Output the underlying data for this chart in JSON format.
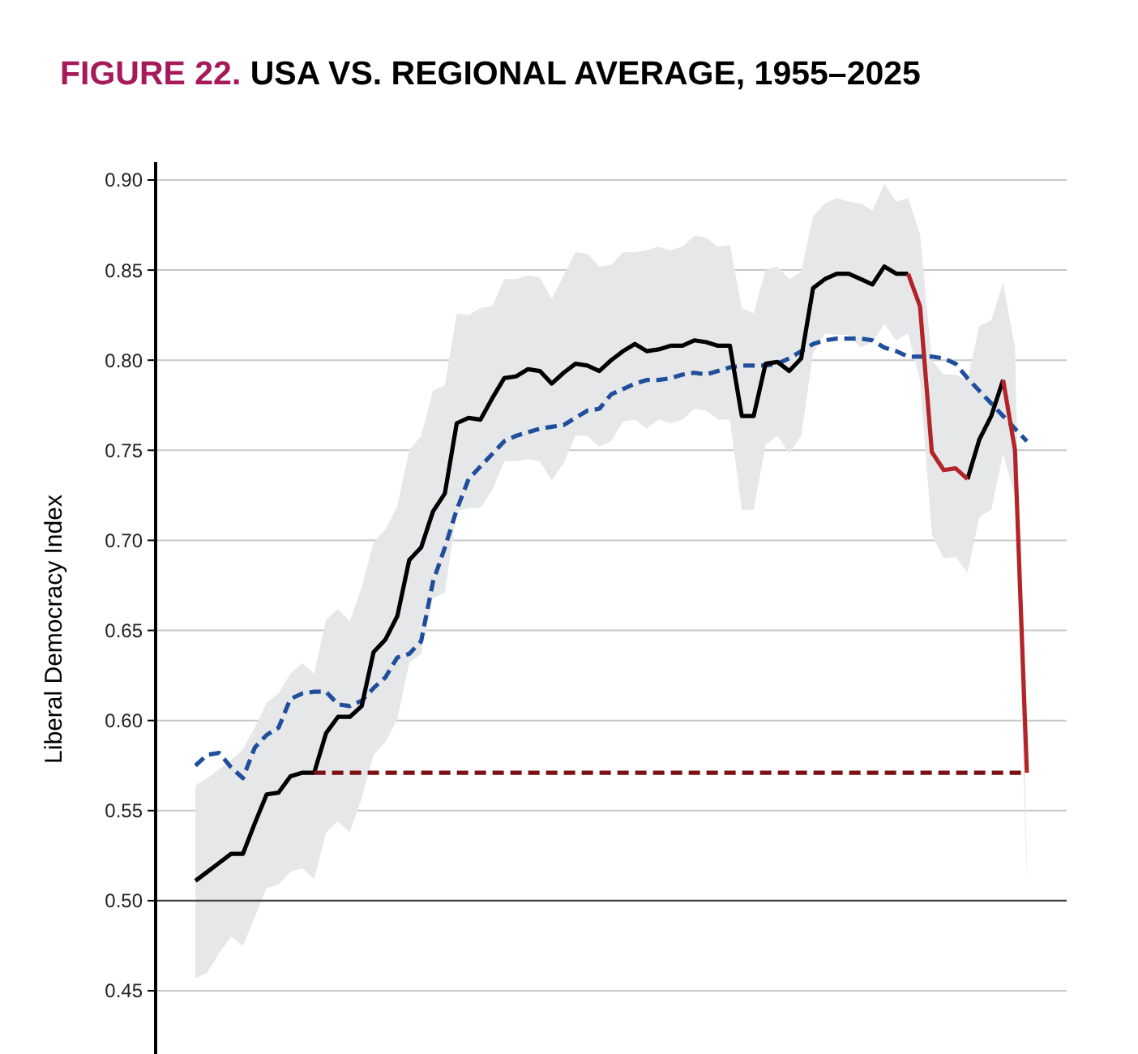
{
  "chart_data": {
    "type": "line",
    "title": "USA VS. REGIONAL AVERAGE, 1955–2025",
    "annotations": [
      "FIGURE 22."
    ],
    "ylabel": "Liberal Democracy Index",
    "categories": [
      null,
      null,
      null,
      null,
      null,
      null,
      null,
      null,
      null,
      null,
      null,
      null,
      null,
      null,
      null,
      null,
      null,
      null,
      null,
      null,
      null,
      null,
      null,
      null,
      null,
      null,
      null,
      null,
      null,
      null,
      null,
      null,
      null,
      null,
      null,
      null,
      null,
      null,
      null,
      null,
      null,
      null,
      null,
      null,
      null,
      null,
      null,
      null,
      null,
      null,
      null,
      null,
      null,
      null,
      null,
      null,
      null,
      null,
      null,
      null,
      null,
      null,
      null,
      null,
      null,
      null,
      null,
      null,
      null,
      null,
      null
    ],
    "ylim": [
      0.45,
      0.9
    ],
    "yticks": [
      {
        "value": 0.45,
        "label": "0.45"
      },
      {
        "value": 0.5,
        "label": "0.50"
      },
      {
        "value": 0.55,
        "label": "0.55"
      },
      {
        "value": 0.6,
        "label": "0.60"
      },
      {
        "value": 0.65,
        "label": "0.65"
      },
      {
        "value": 0.7,
        "label": "0.70"
      },
      {
        "value": 0.75,
        "label": "0.75"
      },
      {
        "value": 0.8,
        "label": "0.80"
      },
      {
        "value": 0.85,
        "label": "0.85"
      },
      {
        "value": 0.9,
        "label": "0.90"
      }
    ],
    "tick_labels": "y",
    "grid": "y",
    "ref_lines": [
      {
        "axis": "y",
        "value": 0.5,
        "color": "#444444"
      }
    ],
    "series": [
      {
        "color": "#1f4e9c",
        "line_style": "dashed",
        "values": [
          0.575,
          0.581,
          0.582,
          0.574,
          0.568,
          0.585,
          0.592,
          0.596,
          0.612,
          0.615,
          0.616,
          0.616,
          0.609,
          0.608,
          0.611,
          0.618,
          0.624,
          0.635,
          0.637,
          0.644,
          0.677,
          0.696,
          0.717,
          0.734,
          0.741,
          0.748,
          0.755,
          0.758,
          0.76,
          0.762,
          0.763,
          0.764,
          0.768,
          0.772,
          0.773,
          0.781,
          0.784,
          0.787,
          0.789,
          0.789,
          0.79,
          0.792,
          0.793,
          0.792,
          0.794,
          0.796,
          0.797,
          0.797,
          0.797,
          0.798,
          0.801,
          0.805,
          0.809,
          0.811,
          0.812,
          0.812,
          0.812,
          0.811,
          0.807,
          0.805,
          0.802,
          0.802,
          0.802,
          0.801,
          0.798,
          0.79,
          0.783,
          0.776,
          0.769,
          0.762,
          0.755
        ],
        "upper": [
          0.564,
          0.568,
          0.573,
          0.578,
          0.584,
          0.596,
          0.61,
          0.615,
          0.626,
          0.632,
          0.626,
          0.656,
          0.662,
          0.655,
          0.674,
          0.699,
          0.706,
          0.719,
          0.75,
          0.758,
          0.783,
          0.786,
          0.826,
          0.825,
          0.829,
          0.83,
          0.845,
          0.845,
          0.847,
          0.846,
          0.834,
          0.847,
          0.86,
          0.859,
          0.852,
          0.853,
          0.86,
          0.86,
          0.861,
          0.863,
          0.861,
          0.863,
          0.869,
          0.868,
          0.863,
          0.864,
          0.829,
          0.826,
          0.85,
          0.852,
          0.845,
          0.849,
          0.88,
          0.887,
          0.89,
          0.888,
          0.887,
          0.883,
          0.898,
          0.888,
          0.89,
          0.87,
          0.8,
          0.792,
          0.792,
          0.789,
          0.819,
          0.822,
          0.843,
          0.807,
          0.52
        ],
        "lower": [
          0.457,
          0.46,
          0.471,
          0.48,
          0.475,
          0.491,
          0.507,
          0.509,
          0.516,
          0.518,
          0.512,
          0.538,
          0.544,
          0.538,
          0.557,
          0.581,
          0.588,
          0.601,
          0.632,
          0.637,
          0.668,
          0.671,
          0.716,
          0.718,
          0.718,
          0.728,
          0.744,
          0.744,
          0.745,
          0.744,
          0.733,
          0.743,
          0.758,
          0.758,
          0.752,
          0.755,
          0.766,
          0.767,
          0.762,
          0.767,
          0.765,
          0.767,
          0.773,
          0.772,
          0.767,
          0.767,
          0.717,
          0.717,
          0.753,
          0.758,
          0.748,
          0.758,
          0.804,
          0.815,
          0.814,
          0.814,
          0.807,
          0.81,
          0.82,
          0.811,
          0.815,
          0.789,
          0.703,
          0.69,
          0.691,
          0.682,
          0.713,
          0.717,
          0.748,
          0.724,
          0.512
        ]
      },
      {
        "color": "#000000",
        "values": [
          0.511,
          0.516,
          0.521,
          0.526,
          0.526,
          0.543,
          0.559,
          0.56,
          0.569,
          0.571,
          0.571,
          0.593,
          0.602,
          0.602,
          0.608,
          0.638,
          0.645,
          0.658,
          0.689,
          0.696,
          0.716,
          0.726,
          0.765,
          0.768,
          0.767,
          0.779,
          0.79,
          0.791,
          0.795,
          0.794,
          0.787,
          0.793,
          0.798,
          0.797,
          0.794,
          0.8,
          0.805,
          0.809,
          0.805,
          0.806,
          0.808,
          0.808,
          0.811,
          0.81,
          0.808,
          0.808,
          0.769,
          0.769,
          0.798,
          0.799,
          0.794,
          0.801,
          0.84,
          0.845,
          0.848,
          0.848,
          0.845,
          0.842,
          0.852,
          0.848,
          0.848,
          null,
          null,
          null,
          null,
          0.734,
          0.756,
          0.769,
          0.789,
          null,
          null
        ]
      },
      {
        "color": "#b22428",
        "values": [
          null,
          null,
          null,
          null,
          null,
          null,
          null,
          null,
          null,
          null,
          null,
          null,
          null,
          null,
          null,
          null,
          null,
          null,
          null,
          null,
          null,
          null,
          null,
          null,
          null,
          null,
          null,
          null,
          null,
          null,
          null,
          null,
          null,
          null,
          null,
          null,
          null,
          null,
          null,
          null,
          null,
          null,
          null,
          null,
          null,
          null,
          null,
          null,
          null,
          null,
          null,
          null,
          null,
          null,
          null,
          null,
          null,
          null,
          null,
          null,
          0.848,
          0.83,
          0.749,
          0.739,
          0.74,
          0.734,
          null,
          null,
          0.789,
          0.75,
          0.571
        ]
      },
      {
        "color": "#7b1113",
        "line_style": "dashed",
        "values": [
          null,
          null,
          null,
          null,
          null,
          null,
          null,
          null,
          null,
          null,
          0.571,
          0.571,
          0.571,
          0.571,
          0.571,
          0.571,
          0.571,
          0.571,
          0.571,
          0.571,
          0.571,
          0.571,
          0.571,
          0.571,
          0.571,
          0.571,
          0.571,
          0.571,
          0.571,
          0.571,
          0.571,
          0.571,
          0.571,
          0.571,
          0.571,
          0.571,
          0.571,
          0.571,
          0.571,
          0.571,
          0.571,
          0.571,
          0.571,
          0.571,
          0.571,
          0.571,
          0.571,
          0.571,
          0.571,
          0.571,
          0.571,
          0.571,
          0.571,
          0.571,
          0.571,
          0.571,
          0.571,
          0.571,
          0.571,
          0.571,
          0.571,
          0.571,
          0.571,
          0.571,
          0.571,
          0.571,
          0.571,
          0.571,
          0.571,
          0.571,
          0.571
        ]
      }
    ]
  }
}
